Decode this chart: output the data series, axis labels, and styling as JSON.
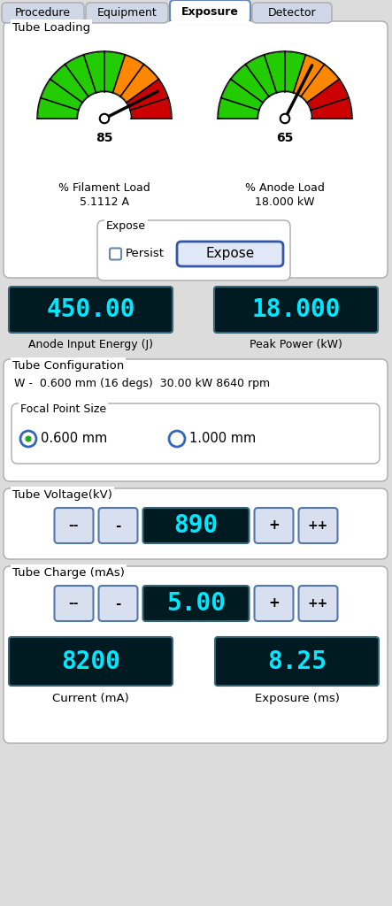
{
  "bg_color": "#dcdcdc",
  "tabs": [
    "Procedure",
    "Equipment",
    "Exposure",
    "Detector"
  ],
  "active_tab": 2,
  "section_tube_loading": {
    "title": "Tube Loading",
    "gauge1_value": 85,
    "gauge1_label1": "% Filament Load",
    "gauge1_label2": "5.1112 A",
    "gauge2_value": 65,
    "gauge2_label1": "% Anode Load",
    "gauge2_label2": "18.000 kW"
  },
  "expose_box": {
    "title": "Expose",
    "checkbox_label": "Persist",
    "button_label": "Expose"
  },
  "display1": "450.00",
  "display1_label": "Anode Input Energy (J)",
  "display2": "18.000",
  "display2_label": "Peak Power (kW)",
  "section_tube_config": {
    "title": "Tube Configuration",
    "line": "W -  0.600 mm (16 degs)  30.00 kW 8640 rpm",
    "focal_title": "Focal Point Size",
    "radio1_label": "0.600 mm",
    "radio2_label": "1.000 mm"
  },
  "section_tube_voltage": {
    "title": "Tube Voltage(kV)",
    "display": "890"
  },
  "section_tube_charge": {
    "title": "Tube Charge (mAs)",
    "display": "5.00",
    "display_current": "8200",
    "display_exposure": "8.25",
    "label_current": "Current (mA)",
    "label_exposure": "Exposure (ms)"
  },
  "display_bg": "#001a22",
  "display_text_color": "#00e8ff",
  "display_dim_color": "#004455"
}
